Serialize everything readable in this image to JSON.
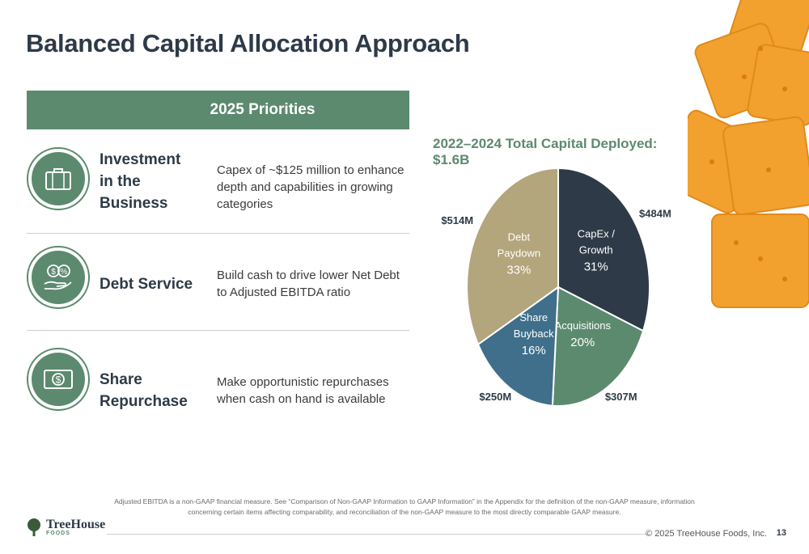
{
  "title": "Balanced Capital Allocation Approach",
  "priorities": {
    "header": "2025 Priorities",
    "items": [
      {
        "name": "Investment in the Business",
        "description": "Capex of ~$125 million to enhance depth and capabilities in growing categories",
        "icon": "briefcase-icon"
      },
      {
        "name": "Debt Service",
        "description": "Build cash to drive lower Net Debt to Adjusted EBITDA ratio",
        "icon": "hand-money-icon"
      },
      {
        "name": "Share Repurchase",
        "description": "Make opportunistic repurchases when cash on hand is available",
        "icon": "dollar-bill-icon"
      }
    ]
  },
  "chart_data": {
    "type": "pie",
    "title": "2022–2024 Total Capital Deployed: $1.6B",
    "slices": [
      {
        "label": "CapEx / Growth",
        "percent": 31,
        "percent_label": "31%",
        "amount_label": "$484M",
        "color": "#2e3a47"
      },
      {
        "label": "Acquisitions",
        "percent": 20,
        "percent_label": "20%",
        "amount_label": "$307M",
        "color": "#5c8a6e"
      },
      {
        "label": "Share Buyback",
        "percent": 16,
        "percent_label": "16%",
        "amount_label": "$250M",
        "color": "#3f6f8a"
      },
      {
        "label": "Debt Paydown",
        "percent": 33,
        "percent_label": "33%",
        "amount_label": "$514M",
        "color": "#b3a57c"
      }
    ]
  },
  "footnote": "Adjusted EBITDA is a non-GAAP financial measure. See “Comparison of Non-GAAP Information to GAAP Information” in the Appendix for the definition of the non-GAAP measure, information concerning certain items affecting comparability, and reconciliation of the non-GAAP measure to the most directly comparable GAAP measure.",
  "footer": {
    "logo_name": "TreeHouse",
    "logo_sub": "FOODS",
    "copyright": "© 2025 TreeHouse Foods, Inc.",
    "page": "13"
  }
}
